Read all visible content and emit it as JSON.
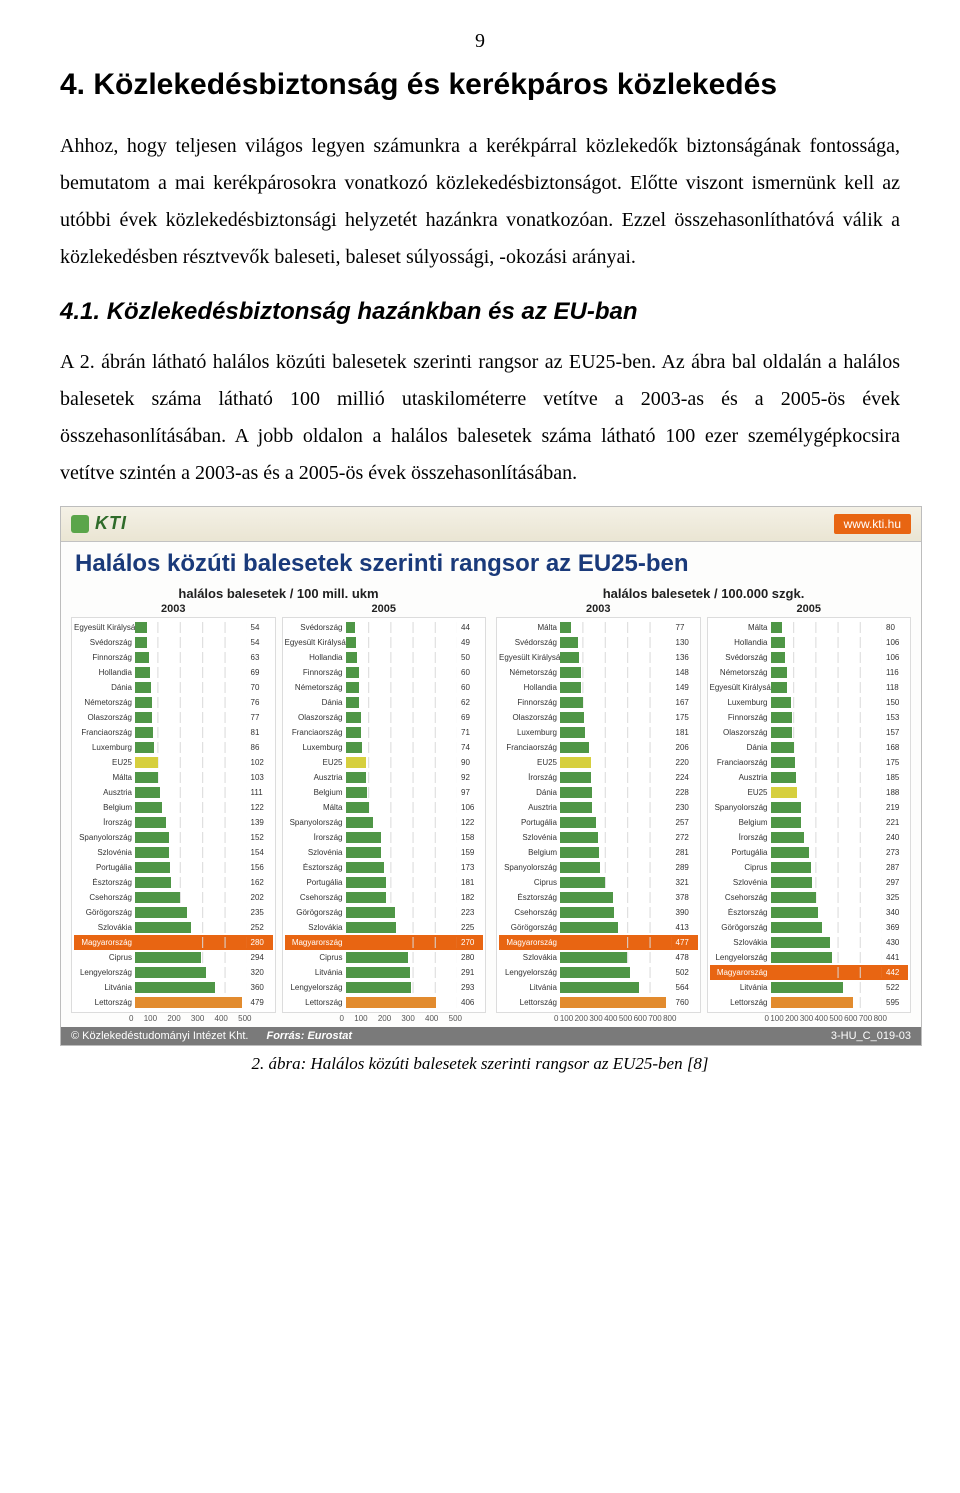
{
  "page_number": "9",
  "section_title": "4.  Közlekedésbiztonság és kerékpáros közleke­dés",
  "paragraph1": "Ahhoz, hogy teljesen világos legyen számunkra a kerékpárral közlekedők biztonsá­gának fontossága, bemutatom a mai kerékpárosokra vonatkozó közlekedésbiztonsá­got. Előtte viszont ismernünk kell az utóbbi évek közlekedésbiztonsági helyzetét ha­zánkra vonatkozóan. Ezzel összehasonlíthatóvá válik a közlekedésben résztvevők baleseti, baleset súlyossági, -okozási arányai.",
  "subsection_title": "4.1.    Közlekedésbiztonság hazánkban és az EU-ban",
  "paragraph2": "A 2. ábrán látható halálos közúti balesetek szerinti rangsor az EU25-ben. Az ábra bal oldalán a halálos balesetek száma látható 100 millió utaskilométerre vetítve a 2003-as és a 2005-ös évek összehasonlításában. A jobb oldalon a halálos balesetek száma látható 100 ezer személygépkocsira vetítve szintén a 2003-as és a 2005-ös évek összehasonlításában.",
  "figure": {
    "logo_text": "KTI",
    "site": "www.kti.hu",
    "title": "Halálos közúti balesetek szerinti rangsor az EU25-ben",
    "footer_org": "© Közlekedéstudományi Intézet Kht.",
    "footer_source_label": "Forrás:",
    "footer_source": "Eurostat",
    "footer_code": "3-HU_C_019-03",
    "colors": {
      "background": "#fdfdfc",
      "bar_green": "#4f9646",
      "bar_yellow": "#d6cf3e",
      "bar_orange": "#e28b2e",
      "bar_highlight": "#e86512",
      "grid": "#d9d9d9",
      "text": "#333333",
      "title_color": "#1a3a7a"
    },
    "panelA": {
      "title": "halálos balesetek / 100 mill. ukm",
      "max": 500,
      "ticks": [
        "0",
        "100",
        "200",
        "300",
        "400",
        "500"
      ],
      "col1": {
        "year": "2003",
        "rows": [
          {
            "c": "Egyesült Királyság",
            "v": 54,
            "color": "bar_green"
          },
          {
            "c": "Svédország",
            "v": 54,
            "color": "bar_green"
          },
          {
            "c": "Finnország",
            "v": 63,
            "color": "bar_green"
          },
          {
            "c": "Hollandia",
            "v": 69,
            "color": "bar_green"
          },
          {
            "c": "Dánia",
            "v": 70,
            "color": "bar_green"
          },
          {
            "c": "Németország",
            "v": 76,
            "color": "bar_green"
          },
          {
            "c": "Olaszország",
            "v": 77,
            "color": "bar_green"
          },
          {
            "c": "Franciaország",
            "v": 81,
            "color": "bar_green"
          },
          {
            "c": "Luxemburg",
            "v": 86,
            "color": "bar_green"
          },
          {
            "c": "EU25",
            "v": 102,
            "color": "bar_yellow"
          },
          {
            "c": "Málta",
            "v": 103,
            "color": "bar_green"
          },
          {
            "c": "Ausztria",
            "v": 111,
            "color": "bar_green"
          },
          {
            "c": "Belgium",
            "v": 122,
            "color": "bar_green"
          },
          {
            "c": "Írország",
            "v": 139,
            "color": "bar_green"
          },
          {
            "c": "Spanyolország",
            "v": 152,
            "color": "bar_green"
          },
          {
            "c": "Szlovénia",
            "v": 154,
            "color": "bar_green"
          },
          {
            "c": "Portugália",
            "v": 156,
            "color": "bar_green"
          },
          {
            "c": "Észtország",
            "v": 162,
            "color": "bar_green"
          },
          {
            "c": "Csehország",
            "v": 202,
            "color": "bar_green"
          },
          {
            "c": "Görögország",
            "v": 235,
            "color": "bar_green"
          },
          {
            "c": "Szlovákia",
            "v": 252,
            "color": "bar_green"
          },
          {
            "c": "Magyarország",
            "v": 280,
            "color": "bar_highlight",
            "hl": true
          },
          {
            "c": "Ciprus",
            "v": 294,
            "color": "bar_green"
          },
          {
            "c": "Lengyelország",
            "v": 320,
            "color": "bar_green"
          },
          {
            "c": "Litvánia",
            "v": 360,
            "color": "bar_green"
          },
          {
            "c": "Lettország",
            "v": 479,
            "color": "bar_orange"
          }
        ]
      },
      "col2": {
        "year": "2005",
        "rows": [
          {
            "c": "Svédország",
            "v": 44,
            "color": "bar_green"
          },
          {
            "c": "Egyesült Királyság",
            "v": 49,
            "color": "bar_green"
          },
          {
            "c": "Hollandia",
            "v": 50,
            "color": "bar_green"
          },
          {
            "c": "Finnország",
            "v": 60,
            "color": "bar_green"
          },
          {
            "c": "Németország",
            "v": 60,
            "color": "bar_green"
          },
          {
            "c": "Dánia",
            "v": 62,
            "color": "bar_green"
          },
          {
            "c": "Olaszország",
            "v": 69,
            "color": "bar_green"
          },
          {
            "c": "Franciaország",
            "v": 71,
            "color": "bar_green"
          },
          {
            "c": "Luxemburg",
            "v": 74,
            "color": "bar_green"
          },
          {
            "c": "EU25",
            "v": 90,
            "color": "bar_yellow"
          },
          {
            "c": "Ausztria",
            "v": 92,
            "color": "bar_green"
          },
          {
            "c": "Belgium",
            "v": 97,
            "color": "bar_green"
          },
          {
            "c": "Málta",
            "v": 106,
            "color": "bar_green"
          },
          {
            "c": "Spanyolország",
            "v": 122,
            "color": "bar_green"
          },
          {
            "c": "Írország",
            "v": 158,
            "color": "bar_green"
          },
          {
            "c": "Szlovénia",
            "v": 159,
            "color": "bar_green"
          },
          {
            "c": "Észtország",
            "v": 173,
            "color": "bar_green"
          },
          {
            "c": "Portugália",
            "v": 181,
            "color": "bar_green"
          },
          {
            "c": "Csehország",
            "v": 182,
            "color": "bar_green"
          },
          {
            "c": "Görögország",
            "v": 223,
            "color": "bar_green"
          },
          {
            "c": "Szlovákia",
            "v": 225,
            "color": "bar_green"
          },
          {
            "c": "Magyarország",
            "v": 270,
            "color": "bar_highlight",
            "hl": true
          },
          {
            "c": "Ciprus",
            "v": 280,
            "color": "bar_green"
          },
          {
            "c": "Litvánia",
            "v": 291,
            "color": "bar_green"
          },
          {
            "c": "Lengyelország",
            "v": 293,
            "color": "bar_green"
          },
          {
            "c": "Lettország",
            "v": 406,
            "color": "bar_orange"
          }
        ]
      }
    },
    "panelB": {
      "title": "halálos balesetek / 100.000 szgk.",
      "max": 800,
      "ticks": [
        "0",
        "100",
        "200",
        "300",
        "400",
        "500",
        "600",
        "700",
        "800"
      ],
      "col1": {
        "year": "2003",
        "rows": [
          {
            "c": "Málta",
            "v": 77,
            "color": "bar_green"
          },
          {
            "c": "Svédország",
            "v": 130,
            "color": "bar_green"
          },
          {
            "c": "Egyesült Királyság",
            "v": 136,
            "color": "bar_green"
          },
          {
            "c": "Németország",
            "v": 148,
            "color": "bar_green"
          },
          {
            "c": "Hollandia",
            "v": 149,
            "color": "bar_green"
          },
          {
            "c": "Finnország",
            "v": 167,
            "color": "bar_green"
          },
          {
            "c": "Olaszország",
            "v": 175,
            "color": "bar_green"
          },
          {
            "c": "Luxemburg",
            "v": 181,
            "color": "bar_green"
          },
          {
            "c": "Franciaország",
            "v": 206,
            "color": "bar_green"
          },
          {
            "c": "EU25",
            "v": 220,
            "color": "bar_yellow"
          },
          {
            "c": "Írország",
            "v": 224,
            "color": "bar_green"
          },
          {
            "c": "Dánia",
            "v": 228,
            "color": "bar_green"
          },
          {
            "c": "Ausztria",
            "v": 230,
            "color": "bar_green"
          },
          {
            "c": "Portugália",
            "v": 257,
            "color": "bar_green"
          },
          {
            "c": "Szlovénia",
            "v": 272,
            "color": "bar_green"
          },
          {
            "c": "Belgium",
            "v": 281,
            "color": "bar_green"
          },
          {
            "c": "Spanyolország",
            "v": 289,
            "color": "bar_green"
          },
          {
            "c": "Ciprus",
            "v": 321,
            "color": "bar_green"
          },
          {
            "c": "Észtország",
            "v": 378,
            "color": "bar_green"
          },
          {
            "c": "Csehország",
            "v": 390,
            "color": "bar_green"
          },
          {
            "c": "Görögország",
            "v": 413,
            "color": "bar_green"
          },
          {
            "c": "Magyarország",
            "v": 477,
            "color": "bar_highlight",
            "hl": true
          },
          {
            "c": "Szlovákia",
            "v": 478,
            "color": "bar_green"
          },
          {
            "c": "Lengyelország",
            "v": 502,
            "color": "bar_green"
          },
          {
            "c": "Litvánia",
            "v": 564,
            "color": "bar_green"
          },
          {
            "c": "Lettország",
            "v": 760,
            "color": "bar_orange"
          }
        ]
      },
      "col2": {
        "year": "2005",
        "rows": [
          {
            "c": "Málta",
            "v": 80,
            "color": "bar_green"
          },
          {
            "c": "Hollandia",
            "v": 106,
            "color": "bar_green"
          },
          {
            "c": "Svédország",
            "v": 106,
            "color": "bar_green"
          },
          {
            "c": "Németország",
            "v": 116,
            "color": "bar_green"
          },
          {
            "c": "Egyesült Királyság",
            "v": 118,
            "color": "bar_green"
          },
          {
            "c": "Luxemburg",
            "v": 150,
            "color": "bar_green"
          },
          {
            "c": "Finnország",
            "v": 153,
            "color": "bar_green"
          },
          {
            "c": "Olaszország",
            "v": 157,
            "color": "bar_green"
          },
          {
            "c": "Dánia",
            "v": 168,
            "color": "bar_green"
          },
          {
            "c": "Franciaország",
            "v": 175,
            "color": "bar_green"
          },
          {
            "c": "Ausztria",
            "v": 185,
            "color": "bar_green"
          },
          {
            "c": "EU25",
            "v": 188,
            "color": "bar_yellow"
          },
          {
            "c": "Spanyolország",
            "v": 219,
            "color": "bar_green"
          },
          {
            "c": "Belgium",
            "v": 221,
            "color": "bar_green"
          },
          {
            "c": "Írország",
            "v": 240,
            "color": "bar_green"
          },
          {
            "c": "Portugália",
            "v": 273,
            "color": "bar_green"
          },
          {
            "c": "Ciprus",
            "v": 287,
            "color": "bar_green"
          },
          {
            "c": "Szlovénia",
            "v": 297,
            "color": "bar_green"
          },
          {
            "c": "Csehország",
            "v": 325,
            "color": "bar_green"
          },
          {
            "c": "Észtország",
            "v": 340,
            "color": "bar_green"
          },
          {
            "c": "Görögország",
            "v": 369,
            "color": "bar_green"
          },
          {
            "c": "Szlovákia",
            "v": 430,
            "color": "bar_green"
          },
          {
            "c": "Lengyelország",
            "v": 441,
            "color": "bar_green"
          },
          {
            "c": "Magyarország",
            "v": 442,
            "color": "bar_highlight",
            "hl": true
          },
          {
            "c": "Litvánia",
            "v": 522,
            "color": "bar_green"
          },
          {
            "c": "Lettország",
            "v": 595,
            "color": "bar_orange"
          }
        ]
      }
    }
  },
  "caption": "2. ábra: Halálos közúti balesetek szerinti rangsor az EU25-ben [8]"
}
